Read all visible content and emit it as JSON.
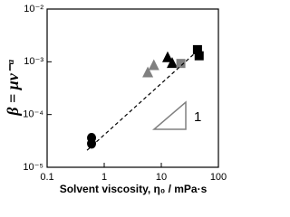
{
  "chart_data": {
    "type": "scatter",
    "x_label": "Solvent viscosity, η₀ / mPa·s",
    "y_label": "β = μv⁻ᵅ",
    "xlog": true,
    "ylog": true,
    "xlim": [
      0.1,
      100
    ],
    "xticks": [
      0.1,
      1,
      10,
      100
    ],
    "ylim": [
      1e-05,
      0.01
    ],
    "yticks": [
      {
        "value": 1e-05,
        "label": "10⁻⁵"
      },
      {
        "value": 0.0001,
        "label": "10⁻⁴"
      },
      {
        "value": 0.001,
        "label": "10⁻³"
      },
      {
        "value": 0.01,
        "label": "10⁻²"
      }
    ],
    "annotation": "1",
    "series": [
      {
        "marker": "circle",
        "color": "#000000",
        "x": [
          0.6,
          0.6
        ],
        "values": [
          3.6e-05,
          2.8e-05
        ]
      },
      {
        "marker": "triangle",
        "color": "#808080",
        "x": [
          5.8,
          7.4
        ],
        "values": [
          0.00062,
          0.00085
        ]
      },
      {
        "marker": "triangle",
        "color": "#000000",
        "x": [
          12.9,
          15.5
        ],
        "values": [
          0.0012,
          0.00093
        ]
      },
      {
        "marker": "square",
        "color": "#808080",
        "x": [
          22
        ],
        "values": [
          0.00093
        ]
      },
      {
        "marker": "square",
        "color": "#000000",
        "x": [
          43,
          46
        ],
        "values": [
          0.0017,
          0.0013
        ]
      },
      {
        "marker": "dashed-line",
        "color": "#000000",
        "x": [
          0.5,
          40
        ],
        "values": [
          2.1e-05,
          0.0015
        ]
      }
    ]
  }
}
